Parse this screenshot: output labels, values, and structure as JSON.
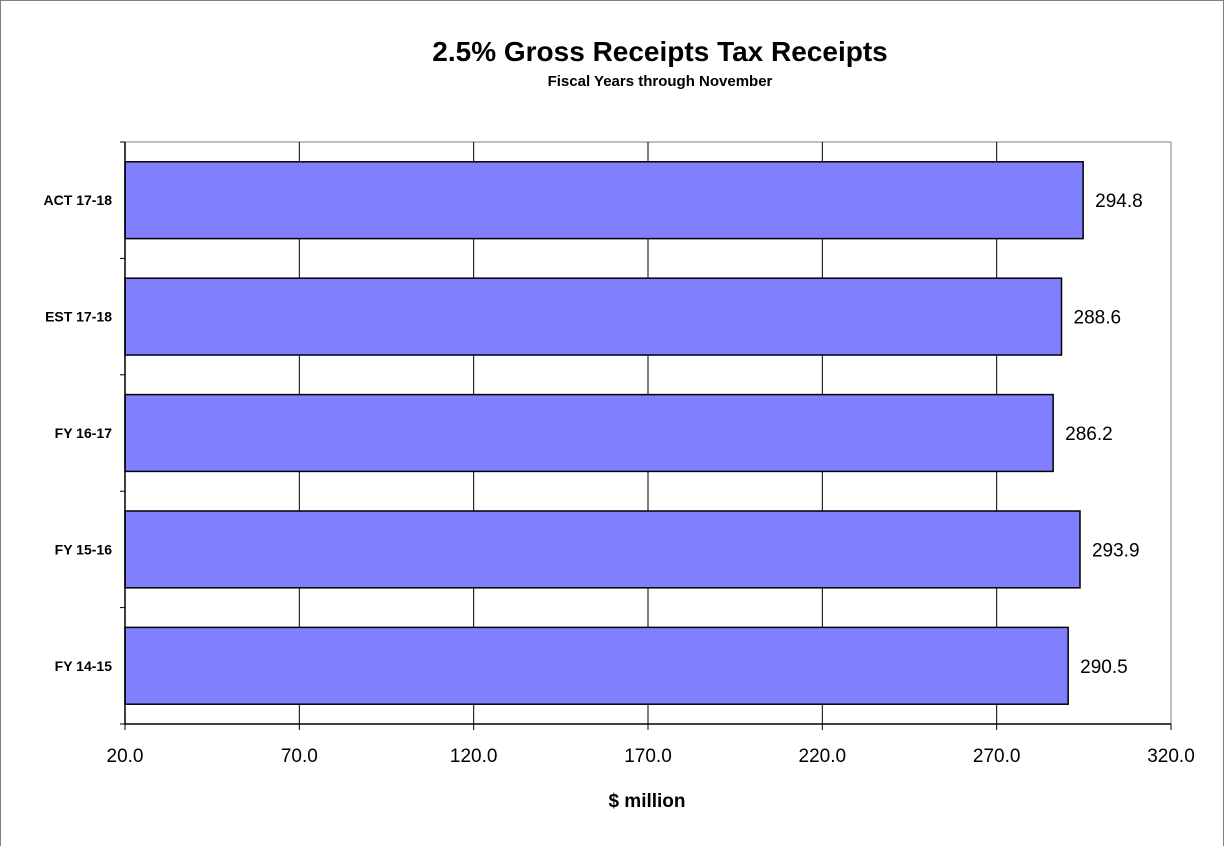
{
  "chart_data": {
    "type": "bar",
    "orientation": "horizontal",
    "title": "2.5% Gross Receipts Tax Receipts",
    "subtitle": "Fiscal Years through November",
    "xlabel": "$ million",
    "ylabel": "",
    "categories": [
      "ACT 17-18",
      "EST 17-18",
      "FY 16-17",
      "FY 15-16",
      "FY 14-15"
    ],
    "values": [
      294.8,
      288.6,
      286.2,
      293.9,
      290.5
    ],
    "value_labels": [
      "294.8",
      "288.6",
      "286.2",
      "293.9",
      "290.5"
    ],
    "xlim": [
      20.0,
      320.0
    ],
    "x_ticks": [
      20.0,
      70.0,
      120.0,
      170.0,
      220.0,
      270.0,
      320.0
    ],
    "x_tick_labels": [
      "20.0",
      "70.0",
      "120.0",
      "170.0",
      "220.0",
      "270.0",
      "320.0"
    ],
    "grid": true,
    "legend": "none",
    "bar_color": "#8080FF",
    "bar_edge_color": "#000000",
    "grid_color": "#000000",
    "frame_color": "#808080"
  }
}
